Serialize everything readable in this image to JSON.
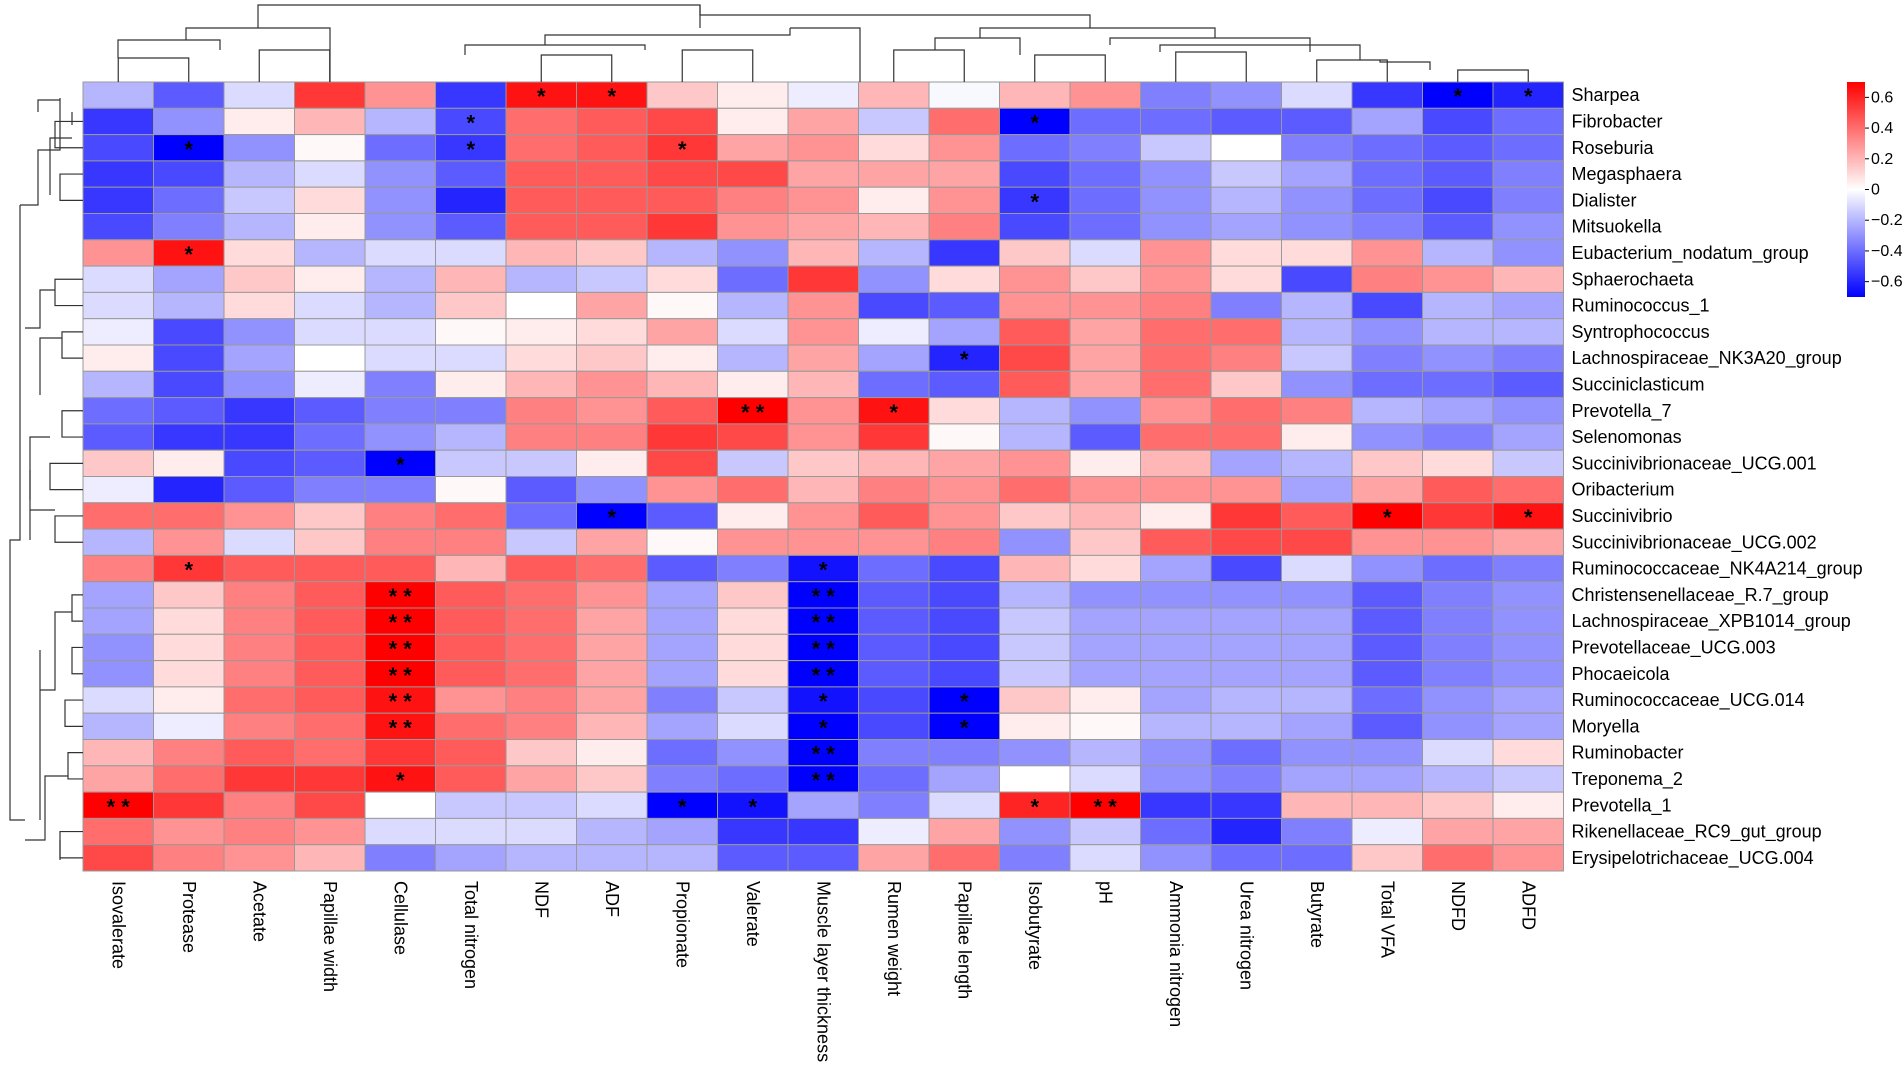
{
  "chart_data": {
    "type": "heatmap",
    "title": "",
    "rows": [
      "Sharpea",
      "Fibrobacter",
      "Roseburia",
      "Megasphaera",
      "Dialister",
      "Mitsuokella",
      "Eubacterium_nodatum_group",
      "Sphaerochaeta",
      "Ruminococcus_1",
      "Syntrophococcus",
      "Lachnospiraceae_NK3A20_group",
      "Succiniclasticum",
      "Prevotella_7",
      "Selenomonas",
      "Succinivibrionaceae_UCG.001",
      "Oribacterium",
      "Succinivibrio",
      "Succinivibrionaceae_UCG.002",
      "Ruminococcaceae_NK4A214_group",
      "Christensenellaceae_R.7_group",
      "Lachnospiraceae_XPB1014_group",
      "Prevotellaceae_UCG.003",
      "Phocaeicola",
      "Ruminococcaceae_UCG.014",
      "Moryella",
      "Ruminobacter",
      "Treponema_2",
      "Prevotella_1",
      "Rikenellaceae_RC9_gut_group",
      "Erysipelotrichaceae_UCG.004"
    ],
    "columns": [
      "Isovalerate",
      "Protease",
      "Acetate",
      "Papillae width",
      "Cellulase",
      "Total nitrogen",
      "NDF",
      "ADF",
      "Propionate",
      "Valerate",
      "Muscle layer thickness",
      "Rumen weight",
      "Papillae length",
      "Isobutyrate",
      "pH",
      "Ammonia nitrogen",
      "Urea nitrogen",
      "Butyrate",
      "Total VFA",
      "NDFD",
      "ADFD"
    ],
    "values": [
      [
        -0.2,
        -0.45,
        -0.1,
        0.55,
        0.3,
        -0.55,
        0.65,
        0.65,
        0.15,
        0.05,
        -0.05,
        0.2,
        -0.02,
        0.2,
        0.3,
        -0.35,
        -0.3,
        -0.1,
        -0.55,
        -0.7,
        -0.6
      ],
      [
        -0.55,
        -0.3,
        0.05,
        0.2,
        -0.2,
        -0.5,
        0.4,
        0.45,
        0.5,
        0.05,
        0.25,
        -0.15,
        0.4,
        -0.7,
        -0.4,
        -0.4,
        -0.45,
        -0.45,
        -0.25,
        -0.5,
        -0.4
      ],
      [
        -0.5,
        -0.75,
        -0.3,
        0.02,
        -0.4,
        -0.55,
        0.4,
        0.45,
        0.55,
        0.25,
        0.3,
        0.1,
        0.3,
        -0.4,
        -0.35,
        -0.15,
        0.0,
        -0.35,
        -0.4,
        -0.45,
        -0.4
      ],
      [
        -0.55,
        -0.5,
        -0.2,
        -0.1,
        -0.3,
        -0.45,
        0.45,
        0.45,
        0.5,
        0.5,
        0.25,
        0.25,
        0.25,
        -0.5,
        -0.4,
        -0.3,
        -0.15,
        -0.25,
        -0.4,
        -0.45,
        -0.35
      ],
      [
        -0.55,
        -0.4,
        -0.15,
        0.1,
        -0.3,
        -0.6,
        0.45,
        0.45,
        0.45,
        0.35,
        0.3,
        0.05,
        0.3,
        -0.55,
        -0.4,
        -0.3,
        -0.2,
        -0.3,
        -0.4,
        -0.5,
        -0.35
      ],
      [
        -0.5,
        -0.35,
        -0.2,
        0.05,
        -0.3,
        -0.45,
        0.45,
        0.45,
        0.55,
        0.3,
        0.25,
        0.2,
        0.35,
        -0.5,
        -0.4,
        -0.3,
        -0.25,
        -0.3,
        -0.35,
        -0.45,
        -0.3
      ],
      [
        0.3,
        0.65,
        0.1,
        -0.2,
        -0.1,
        -0.1,
        0.2,
        0.15,
        -0.2,
        -0.3,
        0.2,
        -0.2,
        -0.55,
        0.15,
        -0.1,
        0.3,
        0.1,
        0.1,
        0.3,
        -0.2,
        -0.3
      ],
      [
        -0.1,
        -0.25,
        0.15,
        0.05,
        -0.2,
        0.2,
        -0.2,
        -0.15,
        0.1,
        -0.4,
        0.55,
        -0.3,
        0.1,
        0.3,
        0.15,
        0.3,
        0.1,
        -0.5,
        0.35,
        0.3,
        0.2
      ],
      [
        -0.1,
        -0.2,
        0.1,
        -0.1,
        -0.2,
        0.15,
        0.0,
        0.25,
        0.02,
        -0.2,
        0.3,
        -0.5,
        -0.45,
        0.3,
        0.3,
        0.35,
        -0.35,
        -0.2,
        -0.5,
        -0.2,
        -0.25
      ],
      [
        -0.05,
        -0.5,
        -0.3,
        -0.1,
        -0.1,
        0.02,
        0.05,
        0.1,
        0.25,
        -0.1,
        0.3,
        -0.05,
        -0.25,
        0.45,
        0.25,
        0.4,
        0.4,
        -0.2,
        -0.3,
        -0.2,
        -0.2
      ],
      [
        0.05,
        -0.5,
        -0.25,
        0.0,
        -0.1,
        -0.1,
        0.1,
        0.15,
        0.05,
        -0.2,
        0.25,
        -0.25,
        -0.6,
        0.5,
        0.25,
        0.4,
        0.35,
        -0.15,
        -0.35,
        -0.3,
        -0.35
      ],
      [
        -0.2,
        -0.5,
        -0.3,
        -0.05,
        -0.35,
        0.05,
        0.2,
        0.3,
        0.2,
        0.05,
        0.2,
        -0.4,
        -0.45,
        0.45,
        0.25,
        0.4,
        0.15,
        -0.3,
        -0.4,
        -0.4,
        -0.45
      ],
      [
        -0.4,
        -0.45,
        -0.55,
        -0.45,
        -0.35,
        -0.35,
        0.35,
        0.3,
        0.45,
        0.7,
        0.3,
        0.65,
        0.1,
        -0.2,
        -0.3,
        0.3,
        0.4,
        0.35,
        -0.2,
        -0.25,
        -0.3
      ],
      [
        -0.45,
        -0.55,
        -0.55,
        -0.4,
        -0.3,
        -0.2,
        0.35,
        0.35,
        0.55,
        0.5,
        0.3,
        0.55,
        0.02,
        -0.2,
        -0.45,
        0.4,
        0.4,
        0.05,
        -0.3,
        -0.35,
        -0.25
      ],
      [
        0.15,
        0.05,
        -0.5,
        -0.45,
        -0.7,
        -0.15,
        -0.15,
        0.05,
        0.5,
        -0.15,
        0.15,
        0.2,
        0.25,
        0.3,
        0.05,
        0.2,
        -0.25,
        -0.2,
        0.15,
        0.1,
        -0.15
      ],
      [
        -0.05,
        -0.6,
        -0.45,
        -0.35,
        -0.35,
        0.02,
        -0.45,
        -0.3,
        0.3,
        0.4,
        0.2,
        0.35,
        0.3,
        0.4,
        0.3,
        0.3,
        0.3,
        -0.25,
        0.25,
        0.45,
        0.4
      ],
      [
        0.4,
        0.4,
        0.3,
        0.15,
        0.35,
        0.4,
        -0.4,
        -0.7,
        -0.45,
        0.05,
        0.3,
        0.45,
        0.3,
        0.15,
        0.2,
        0.05,
        0.55,
        0.45,
        0.7,
        0.55,
        0.65
      ],
      [
        -0.2,
        0.3,
        -0.1,
        0.15,
        0.35,
        0.35,
        -0.15,
        0.25,
        0.02,
        0.3,
        0.3,
        0.3,
        0.35,
        -0.3,
        0.15,
        0.45,
        0.5,
        0.5,
        0.3,
        0.3,
        0.25
      ],
      [
        0.35,
        0.55,
        0.45,
        0.45,
        0.45,
        0.2,
        0.45,
        0.4,
        -0.45,
        -0.35,
        -0.65,
        -0.4,
        -0.5,
        0.2,
        0.1,
        -0.25,
        -0.5,
        -0.1,
        -0.3,
        -0.4,
        -0.35
      ],
      [
        -0.25,
        0.15,
        0.35,
        0.45,
        0.7,
        0.45,
        0.4,
        0.3,
        -0.25,
        0.15,
        -0.75,
        -0.45,
        -0.5,
        -0.2,
        -0.3,
        -0.3,
        -0.3,
        -0.3,
        -0.45,
        -0.35,
        -0.3
      ],
      [
        -0.25,
        0.1,
        0.35,
        0.45,
        0.7,
        0.45,
        0.4,
        0.25,
        -0.25,
        0.1,
        -0.75,
        -0.45,
        -0.5,
        -0.15,
        -0.25,
        -0.25,
        -0.25,
        -0.25,
        -0.45,
        -0.35,
        -0.3
      ],
      [
        -0.3,
        0.1,
        0.35,
        0.45,
        0.7,
        0.45,
        0.4,
        0.25,
        -0.25,
        0.1,
        -0.75,
        -0.45,
        -0.5,
        -0.15,
        -0.25,
        -0.25,
        -0.25,
        -0.25,
        -0.45,
        -0.35,
        -0.3
      ],
      [
        -0.3,
        0.1,
        0.35,
        0.45,
        0.7,
        0.45,
        0.4,
        0.25,
        -0.25,
        0.1,
        -0.75,
        -0.45,
        -0.5,
        -0.15,
        -0.25,
        -0.25,
        -0.25,
        -0.25,
        -0.45,
        -0.35,
        -0.3
      ],
      [
        -0.1,
        0.05,
        0.4,
        0.45,
        0.65,
        0.3,
        0.35,
        0.25,
        -0.35,
        -0.15,
        -0.65,
        -0.5,
        -0.7,
        0.15,
        0.05,
        -0.25,
        -0.2,
        -0.2,
        -0.4,
        -0.3,
        -0.25
      ],
      [
        -0.2,
        -0.05,
        0.35,
        0.4,
        0.65,
        0.4,
        0.35,
        0.2,
        -0.25,
        -0.1,
        -0.7,
        -0.5,
        -0.7,
        0.05,
        0.02,
        -0.2,
        -0.2,
        -0.25,
        -0.45,
        -0.3,
        -0.25
      ],
      [
        0.2,
        0.35,
        0.45,
        0.4,
        0.55,
        0.45,
        0.15,
        0.05,
        -0.4,
        -0.3,
        -0.8,
        -0.35,
        -0.35,
        -0.3,
        -0.2,
        -0.3,
        -0.4,
        -0.3,
        -0.3,
        -0.1,
        0.1
      ],
      [
        0.25,
        0.4,
        0.55,
        0.55,
        0.65,
        0.45,
        0.25,
        0.15,
        -0.35,
        -0.4,
        -0.8,
        -0.4,
        -0.25,
        0.0,
        -0.1,
        -0.3,
        -0.35,
        -0.25,
        -0.25,
        -0.2,
        -0.15
      ],
      [
        0.7,
        0.55,
        0.35,
        0.5,
        0.0,
        -0.15,
        -0.15,
        -0.1,
        -0.7,
        -0.65,
        -0.25,
        -0.35,
        -0.1,
        0.6,
        0.7,
        -0.55,
        -0.55,
        0.2,
        0.2,
        0.15,
        0.05
      ],
      [
        0.4,
        0.3,
        0.35,
        0.3,
        -0.1,
        -0.1,
        -0.1,
        -0.2,
        -0.25,
        -0.55,
        -0.55,
        -0.05,
        0.25,
        -0.3,
        -0.15,
        -0.4,
        -0.6,
        -0.35,
        -0.05,
        0.25,
        0.25
      ],
      [
        0.5,
        0.35,
        0.3,
        0.2,
        -0.35,
        -0.25,
        -0.2,
        -0.2,
        -0.2,
        -0.45,
        -0.45,
        0.25,
        0.4,
        -0.35,
        -0.1,
        -0.3,
        -0.4,
        -0.4,
        0.15,
        0.4,
        0.3
      ]
    ],
    "significance": [
      [
        0,
        6,
        "*"
      ],
      [
        0,
        7,
        "*"
      ],
      [
        0,
        19,
        "*"
      ],
      [
        0,
        20,
        "*"
      ],
      [
        1,
        5,
        "*"
      ],
      [
        1,
        13,
        "*"
      ],
      [
        2,
        1,
        "*"
      ],
      [
        2,
        5,
        "*"
      ],
      [
        2,
        8,
        "*"
      ],
      [
        4,
        13,
        "*"
      ],
      [
        6,
        1,
        "*"
      ],
      [
        10,
        12,
        "*"
      ],
      [
        12,
        9,
        "* *"
      ],
      [
        12,
        11,
        "*"
      ],
      [
        14,
        4,
        "*"
      ],
      [
        16,
        7,
        "*"
      ],
      [
        16,
        18,
        "*"
      ],
      [
        16,
        20,
        "*"
      ],
      [
        18,
        1,
        "*"
      ],
      [
        18,
        10,
        "*"
      ],
      [
        19,
        4,
        "* *"
      ],
      [
        19,
        10,
        "* *"
      ],
      [
        20,
        4,
        "* *"
      ],
      [
        20,
        10,
        "* *"
      ],
      [
        21,
        4,
        "* *"
      ],
      [
        21,
        10,
        "* *"
      ],
      [
        22,
        4,
        "* *"
      ],
      [
        22,
        10,
        "* *"
      ],
      [
        23,
        4,
        "* *"
      ],
      [
        23,
        10,
        "*"
      ],
      [
        23,
        12,
        "*"
      ],
      [
        24,
        4,
        "* *"
      ],
      [
        24,
        10,
        "*"
      ],
      [
        24,
        12,
        "*"
      ],
      [
        25,
        10,
        "* *"
      ],
      [
        26,
        4,
        "*"
      ],
      [
        26,
        10,
        "* *"
      ],
      [
        27,
        0,
        "* *"
      ],
      [
        27,
        8,
        "*"
      ],
      [
        27,
        9,
        "*"
      ],
      [
        27,
        13,
        "*"
      ],
      [
        27,
        14,
        "* *"
      ]
    ],
    "color_scale": {
      "min": -0.7,
      "max": 0.7,
      "low_color": "#0000ff",
      "mid_color": "#ffffff",
      "high_color": "#ff0000",
      "ticks": [
        0.6,
        0.4,
        0.2,
        0,
        -0.2,
        -0.4,
        -0.6
      ],
      "tick_labels": [
        "0.6",
        "0.4",
        "0.2",
        "0",
        "−0.2",
        "−0.4",
        "−0.6"
      ]
    },
    "legend_position": "top-right",
    "grid": true,
    "grid_color": "#999999",
    "row_dendrogram": "left",
    "column_dendrogram": "top"
  }
}
